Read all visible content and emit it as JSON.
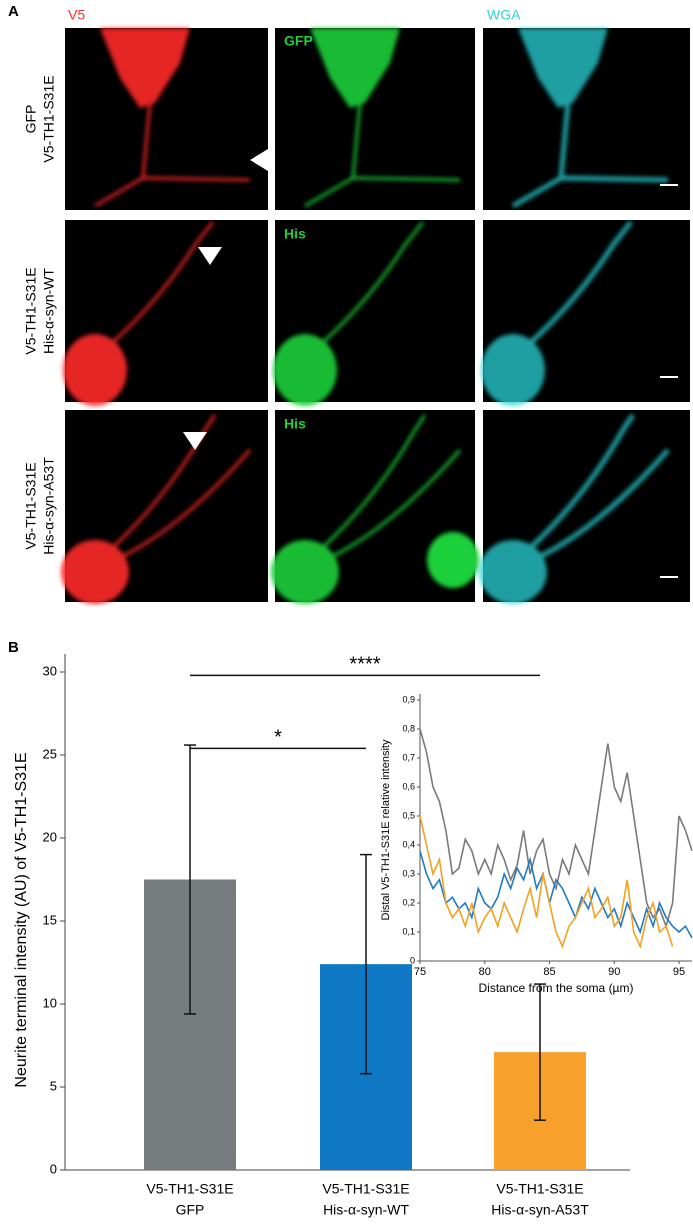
{
  "panel_labels": [
    "A",
    "B"
  ],
  "panel_a": {
    "channels": [
      "V5",
      "GFP",
      "WGA"
    ],
    "row_channel_labels": [
      [
        "V5",
        "GFP",
        "WGA"
      ],
      [
        "His"
      ],
      [
        "His"
      ]
    ],
    "row_labels": [
      [
        "GFP",
        "V5-TH1-S31E"
      ],
      [
        "V5-TH1-S31E",
        "His-α-syn-WT"
      ],
      [
        "V5-TH1-S31E",
        "His-α-syn-A53T"
      ]
    ]
  },
  "chart_data": [
    {
      "type": "bar",
      "ylabel": "Neurite terminal intensity (AU) of V5-TH1-S31E",
      "categories": [
        [
          "V5-TH1-S31E",
          "GFP"
        ],
        [
          "V5-TH1-S31E",
          "His-α-syn-WT"
        ],
        [
          "V5-TH1-S31E",
          "His-α-syn-A53T"
        ]
      ],
      "values": [
        17.5,
        12.4,
        7.1
      ],
      "errors": [
        8.1,
        6.6,
        4.1
      ],
      "colors": [
        "#777c7f",
        "#0e78c4",
        "#f7a12c"
      ],
      "ylim": [
        0,
        30
      ],
      "yticks": [
        0,
        5,
        10,
        15,
        20,
        25,
        30
      ],
      "significance": [
        {
          "from": 0,
          "to": 1,
          "label": "*",
          "y": 25.4
        },
        {
          "from": 0,
          "to": 2,
          "label": "****",
          "y": 29.8
        }
      ]
    },
    {
      "type": "line",
      "xlabel": "Distance from the soma (µm)",
      "ylabel": "Distal V5-TH1-S31E relative intensity",
      "x": [
        75,
        75.5,
        76,
        76.5,
        77,
        77.5,
        78,
        78.5,
        79,
        79.5,
        80,
        80.5,
        81,
        81.5,
        82,
        82.5,
        83,
        83.5,
        84,
        84.5,
        85,
        85.5,
        86,
        86.5,
        87,
        87.5,
        88,
        88.5,
        89,
        89.5,
        90,
        90.5,
        91,
        91.5,
        92,
        92.5,
        93,
        93.5,
        94,
        94.5,
        95,
        95.5,
        96
      ],
      "series": [
        {
          "color": "#7a7a7a",
          "values": [
            0.8,
            0.72,
            0.6,
            0.55,
            0.45,
            0.3,
            0.32,
            0.42,
            0.38,
            0.3,
            0.35,
            0.3,
            0.4,
            0.35,
            0.28,
            0.33,
            0.45,
            0.3,
            0.38,
            0.42,
            0.3,
            0.25,
            0.35,
            0.3,
            0.4,
            0.35,
            0.3,
            0.45,
            0.6,
            0.75,
            0.6,
            0.55,
            0.65,
            0.5,
            0.35,
            0.2,
            0.15,
            0.18,
            0.12,
            0.2,
            0.5,
            0.45,
            0.38
          ]
        },
        {
          "color": "#1f7bc4",
          "values": [
            0.38,
            0.3,
            0.25,
            0.28,
            0.2,
            0.22,
            0.18,
            0.2,
            0.15,
            0.25,
            0.2,
            0.18,
            0.22,
            0.3,
            0.25,
            0.32,
            0.28,
            0.35,
            0.25,
            0.3,
            0.2,
            0.28,
            0.25,
            0.2,
            0.15,
            0.22,
            0.18,
            0.25,
            0.2,
            0.15,
            0.18,
            0.12,
            0.2,
            0.15,
            0.1,
            0.18,
            0.12,
            0.2,
            0.15,
            0.12,
            0.1,
            0.12,
            0.08
          ]
        },
        {
          "color": "#f5a020",
          "values": [
            0.5,
            0.4,
            0.3,
            0.35,
            0.2,
            0.15,
            0.18,
            0.12,
            0.2,
            0.1,
            0.15,
            0.18,
            0.12,
            0.2,
            0.15,
            0.1,
            0.18,
            0.25,
            0.15,
            0.3,
            0.2,
            0.1,
            0.05,
            0.12,
            0.15,
            0.2,
            0.25,
            0.15,
            0.18,
            0.22,
            0.12,
            0.15,
            0.28,
            0.1,
            0.05,
            0.15,
            0.2,
            0.1,
            0.12,
            0.05,
            null,
            null,
            null
          ]
        }
      ],
      "xlim": [
        75,
        96
      ],
      "xticks": [
        75,
        80,
        85,
        90,
        95
      ],
      "ylim": [
        0,
        0.9
      ],
      "yticks": [
        0,
        {
          "value": 0.1,
          "label": "0,1"
        },
        {
          "value": 0.2,
          "label": "0,2"
        },
        {
          "value": 0.3,
          "label": "0,3"
        },
        {
          "value": 0.4,
          "label": "0,4"
        },
        {
          "value": 0.5,
          "label": "0,5"
        },
        {
          "value": 0.6,
          "label": "0,6"
        },
        {
          "value": 0.7,
          "label": "0,7"
        },
        {
          "value": 0.8,
          "label": "0,8"
        },
        {
          "value": 0.9,
          "label": "0,9"
        }
      ]
    }
  ]
}
